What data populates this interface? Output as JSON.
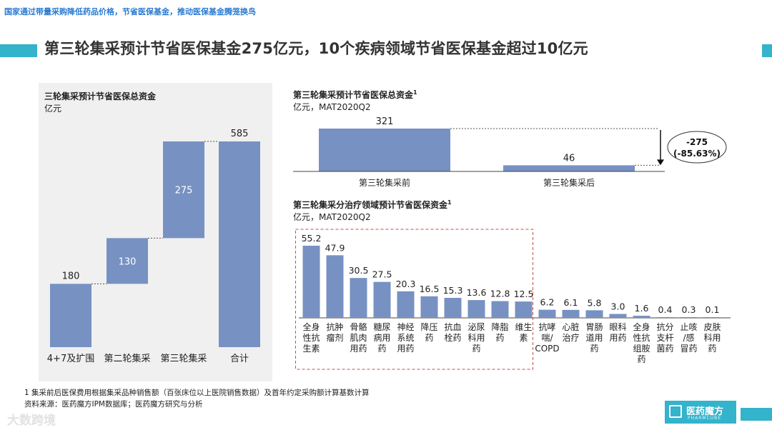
{
  "top_banner": "国家通过带量采购降低药品价格，节省医保基金，推动医保基金腾笼换鸟",
  "headline": "第三轮集采预计节省医保基金275亿元，10个疾病领域节省医保基金超过10亿元",
  "colors": {
    "bar": "#7791c2",
    "accent": "#34b3cc",
    "highlight_box": "#c0504d"
  },
  "chart_data": [
    {
      "type": "bar",
      "subtype": "waterfall",
      "title": "三轮集采预计节省医保总资金",
      "unit": "亿元",
      "categories": [
        "4+7及扩围",
        "第二轮集采",
        "第三轮集采",
        "合计"
      ],
      "values": [
        180,
        130,
        275,
        585
      ],
      "cumulative_end": [
        180,
        310,
        585,
        585
      ],
      "ylim": [
        0,
        585
      ]
    },
    {
      "type": "bar",
      "title": "第三轮集采预计节省医保总资金",
      "title_sup": "1",
      "unit": "亿元，MAT2020Q2",
      "categories": [
        "第三轮集采前",
        "第三轮集采后"
      ],
      "values": [
        321,
        46
      ],
      "annotation": {
        "line1": "-275",
        "line2": "(-85.63%)"
      }
    },
    {
      "type": "bar",
      "title": "第三轮集采分治疗领域预计节省医保资金",
      "title_sup": "1",
      "unit": "亿元，MAT2020Q2",
      "categories": [
        [
          "全身",
          "性抗",
          "生素"
        ],
        [
          "抗肿",
          "瘤剂"
        ],
        [
          "骨骼",
          "肌肉",
          "用药"
        ],
        [
          "糖尿",
          "病用",
          "药"
        ],
        [
          "神经",
          "系统",
          "用药"
        ],
        [
          "降压",
          "药"
        ],
        [
          "抗血",
          "栓药"
        ],
        [
          "泌尿",
          "科用",
          "药"
        ],
        [
          "降脂",
          "药"
        ],
        [
          "维生",
          "素"
        ],
        [
          "抗哮",
          "喘/",
          "COPD"
        ],
        [
          "心脏",
          "治疗"
        ],
        [
          "胃肠",
          "道用",
          "药"
        ],
        [
          "眼科",
          "用药"
        ],
        [
          "全身",
          "性抗",
          "组胺",
          "药"
        ],
        [
          "抗分",
          "支杆",
          "菌药"
        ],
        [
          "止咳",
          "/感",
          "冒药"
        ],
        [
          "皮肤",
          "科用",
          "药"
        ]
      ],
      "values": [
        55.2,
        47.9,
        30.5,
        27.5,
        20.3,
        16.5,
        15.3,
        13.6,
        12.8,
        12.5,
        6.2,
        6.1,
        5.8,
        3.0,
        1.6,
        0.4,
        0.3,
        0.1
      ],
      "value_labels": [
        "55.2",
        "47.9",
        "30.5",
        "27.5",
        "20.3",
        "16.5",
        "15.3",
        "13.6",
        "12.8",
        "12.5",
        "6.2",
        "6.1",
        "5.8",
        "3.0",
        "1.6",
        "0.4",
        "0.3",
        "0.1"
      ],
      "highlight_count": 10
    }
  ],
  "footnotes": [
    "1 集采前后医保费用根据集采品种销售额（百张床位以上医院销售数据）及首年约定采购额计算基数计算",
    "资料来源：医药魔方IPM数据库；医药魔方研究与分析"
  ],
  "brand": {
    "name": "医药魔方",
    "sub": "PHARMCUBE"
  },
  "watermark": "大数跨境"
}
